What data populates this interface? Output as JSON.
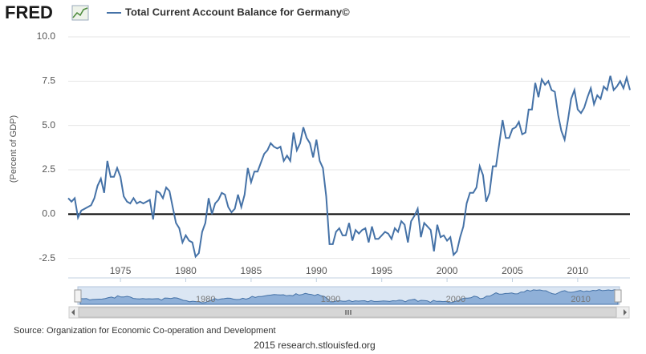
{
  "logo": "FRED",
  "chart_data": {
    "type": "line",
    "title": "Total Current Account Balance for Germany©",
    "y_label": "(Percent of GDP)",
    "xlim": [
      1971.0,
      2014.0
    ],
    "xticks": [
      1975,
      1980,
      1985,
      1990,
      1995,
      2000,
      2005,
      2010
    ],
    "ylim": [
      -3.6,
      10
    ],
    "yticks": [
      {
        "value": 10,
        "label": "10.0"
      },
      7.5,
      {
        "value": 5,
        "label": "5.0"
      },
      2.5,
      {
        "value": 0,
        "label": "0.0"
      },
      -2.5
    ],
    "grid": true,
    "x": [
      1971,
      1971.25,
      1971.5,
      1971.75,
      1972,
      1972.25,
      1972.5,
      1972.75,
      1973,
      1973.25,
      1973.5,
      1973.75,
      1974,
      1974.25,
      1974.5,
      1974.75,
      1975,
      1975.25,
      1975.5,
      1975.75,
      1976,
      1976.25,
      1976.5,
      1976.75,
      1977,
      1977.25,
      1977.5,
      1977.75,
      1978,
      1978.25,
      1978.5,
      1978.75,
      1979,
      1979.25,
      1979.5,
      1979.75,
      1980,
      1980.25,
      1980.5,
      1980.75,
      1981,
      1981.25,
      1981.5,
      1981.75,
      1982,
      1982.25,
      1982.5,
      1982.75,
      1983,
      1983.25,
      1983.5,
      1983.75,
      1984,
      1984.25,
      1984.5,
      1984.75,
      1985,
      1985.25,
      1985.5,
      1985.75,
      1986,
      1986.25,
      1986.5,
      1986.75,
      1987,
      1987.25,
      1987.5,
      1987.75,
      1988,
      1988.25,
      1988.5,
      1988.75,
      1989,
      1989.25,
      1989.5,
      1989.75,
      1990,
      1990.25,
      1990.5,
      1990.75,
      1991,
      1991.25,
      1991.5,
      1991.75,
      1992,
      1992.25,
      1992.5,
      1992.75,
      1993,
      1993.25,
      1993.5,
      1993.75,
      1994,
      1994.25,
      1994.5,
      1994.75,
      1995,
      1995.25,
      1995.5,
      1995.75,
      1996,
      1996.25,
      1996.5,
      1996.75,
      1997,
      1997.25,
      1997.5,
      1997.75,
      1998,
      1998.25,
      1998.5,
      1998.75,
      1999,
      1999.25,
      1999.5,
      1999.75,
      2000,
      2000.25,
      2000.5,
      2000.75,
      2001,
      2001.25,
      2001.5,
      2001.75,
      2002,
      2002.25,
      2002.5,
      2002.75,
      2003,
      2003.25,
      2003.5,
      2003.75,
      2004,
      2004.25,
      2004.5,
      2004.75,
      2005,
      2005.25,
      2005.5,
      2005.75,
      2006,
      2006.25,
      2006.5,
      2006.75,
      2007,
      2007.25,
      2007.5,
      2007.75,
      2008,
      2008.25,
      2008.5,
      2008.75,
      2009,
      2009.25,
      2009.5,
      2009.75,
      2010,
      2010.25,
      2010.5,
      2010.75,
      2011,
      2011.25,
      2011.5,
      2011.75,
      2012,
      2012.25,
      2012.5,
      2012.75,
      2013,
      2013.25,
      2013.5,
      2013.75,
      2014
    ],
    "series": [
      {
        "name": "Total Current Account Balance for Germany©",
        "color": "#4572a7",
        "values": [
          0.9,
          0.7,
          0.9,
          -0.2,
          0.2,
          0.3,
          0.4,
          0.5,
          0.9,
          1.6,
          2.0,
          1.2,
          3.0,
          2.1,
          2.1,
          2.6,
          2.1,
          1.0,
          0.7,
          0.6,
          0.9,
          0.6,
          0.7,
          0.6,
          0.7,
          0.8,
          -0.3,
          1.3,
          1.2,
          0.9,
          1.5,
          1.3,
          0.4,
          -0.5,
          -0.8,
          -1.6,
          -1.2,
          -1.5,
          -1.6,
          -2.4,
          -2.2,
          -1.0,
          -0.5,
          0.9,
          0.0,
          0.6,
          0.8,
          1.2,
          1.1,
          0.4,
          0.1,
          0.3,
          1.1,
          0.4,
          1.1,
          2.6,
          1.8,
          2.4,
          2.4,
          2.9,
          3.4,
          3.6,
          4.0,
          3.8,
          3.7,
          3.8,
          3.0,
          3.3,
          3.0,
          4.6,
          3.6,
          4.0,
          4.9,
          4.3,
          4.0,
          3.2,
          4.2,
          3.0,
          2.6,
          1.0,
          -1.7,
          -1.7,
          -1.0,
          -0.8,
          -1.2,
          -1.2,
          -0.5,
          -1.5,
          -0.9,
          -1.1,
          -0.9,
          -0.8,
          -1.6,
          -0.7,
          -1.4,
          -1.4,
          -1.2,
          -1.0,
          -1.1,
          -1.4,
          -0.8,
          -1.0,
          -0.4,
          -0.6,
          -1.6,
          -0.4,
          -0.1,
          0.3,
          -1.3,
          -0.5,
          -0.7,
          -0.9,
          -2.1,
          -0.6,
          -1.3,
          -1.2,
          -1.5,
          -1.3,
          -2.3,
          -2.1,
          -1.3,
          -0.7,
          0.6,
          1.2,
          1.2,
          1.5,
          2.7,
          2.2,
          0.7,
          1.2,
          2.7,
          2.7,
          4.0,
          5.3,
          4.3,
          4.3,
          4.8,
          4.9,
          5.2,
          4.5,
          4.6,
          5.9,
          5.9,
          7.4,
          6.6,
          7.6,
          7.3,
          7.5,
          7.0,
          6.9,
          5.6,
          4.7,
          4.2,
          5.3,
          6.5,
          7.0,
          5.9,
          5.7,
          6.0,
          6.6,
          7.1,
          6.2,
          6.7,
          6.5,
          7.2,
          7.0,
          7.8,
          7.0,
          7.2,
          7.5,
          7.1,
          7.7,
          7.0
        ]
      }
    ],
    "navigator_xticks": [
      1980,
      1990,
      2000,
      2010
    ]
  },
  "source": "Source: Organization for Economic Co-operation and Development",
  "footer": "2015 research.stlouisfed.org"
}
